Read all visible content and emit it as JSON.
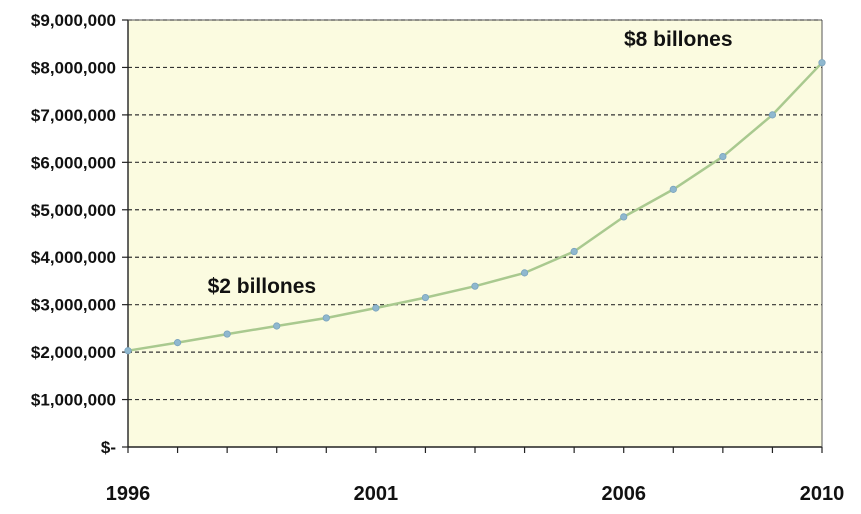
{
  "chart_data": {
    "type": "line",
    "title": "",
    "xlabel": "",
    "ylabel": "",
    "x": [
      1996,
      1997,
      1998,
      1999,
      2000,
      2001,
      2002,
      2003,
      2004,
      2005,
      2006,
      2007,
      2008,
      2009,
      2010
    ],
    "series": [
      {
        "values": [
          2030000,
          2200000,
          2380000,
          2550000,
          2720000,
          2930000,
          3150000,
          3390000,
          3670000,
          4120000,
          4850000,
          5430000,
          6120000,
          7000000,
          8100000
        ]
      }
    ],
    "x_tick_labels": [
      "1996",
      "2001",
      "2006",
      "2010"
    ],
    "x_tick_values": [
      1996,
      2001,
      2006,
      2010
    ],
    "y_tick_values": [
      0,
      1000000,
      2000000,
      3000000,
      4000000,
      5000000,
      6000000,
      7000000,
      8000000,
      9000000
    ],
    "y_tick_labels": [
      "$-",
      "$1,000,000",
      "$2,000,000",
      "$3,000,000",
      "$4,000,000",
      "$5,000,000",
      "$6,000,000",
      "$7,000,000",
      "$8,000,000",
      "$9,000,000"
    ],
    "ylim": [
      0,
      9000000
    ],
    "xlim": [
      1996,
      2010
    ],
    "grid": "horizontal dashed",
    "annotations": [
      {
        "text": "$2 billones",
        "x": 1998.7,
        "y": 3250000
      },
      {
        "text": "$8 billones",
        "x": 2007.1,
        "y": 8450000
      }
    ],
    "colors": {
      "plot_background": "#fbfbe0",
      "line": "#a9c98f",
      "marker": "#8fb8cf",
      "grid": "#333333",
      "axis": "#222222"
    }
  }
}
